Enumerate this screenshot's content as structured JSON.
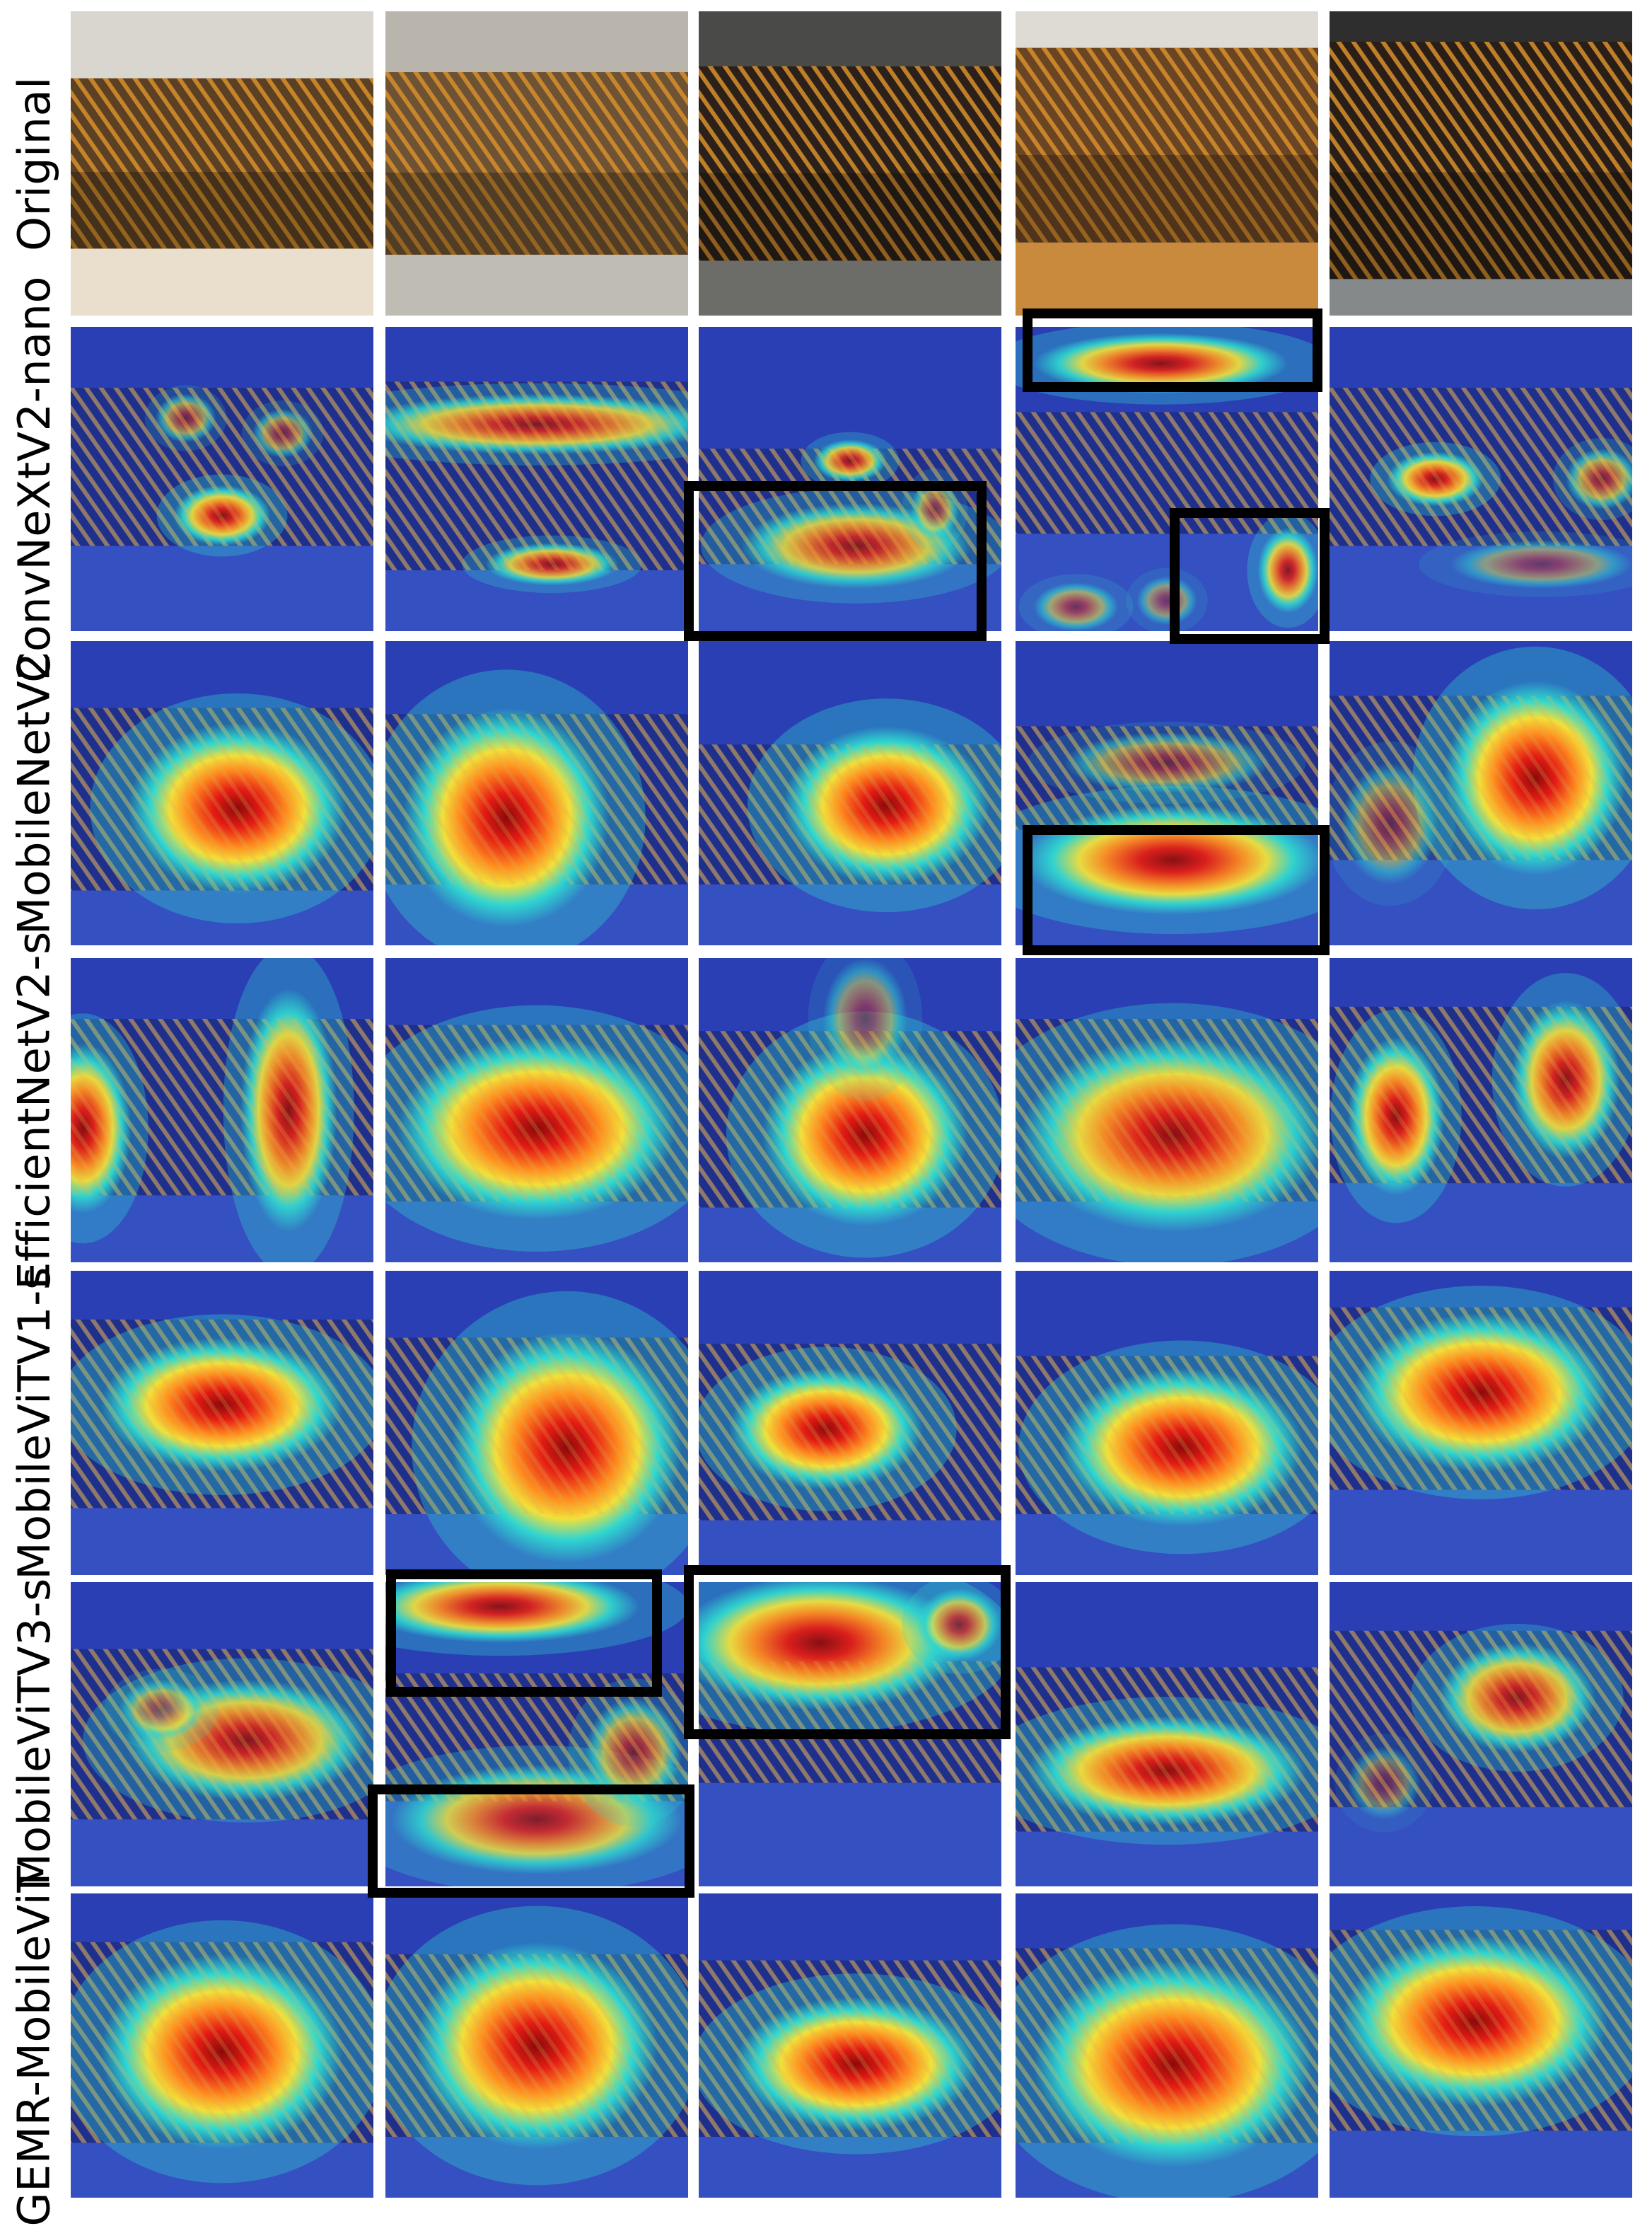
{
  "figure": {
    "rows": [
      {
        "label": "Original",
        "type": "original"
      },
      {
        "label": "ConvNeXtV2-nano",
        "type": "heatmap"
      },
      {
        "label": "MobileNetV2",
        "type": "heatmap"
      },
      {
        "label": "EfficientNetV2-s",
        "type": "heatmap"
      },
      {
        "label": "MobileViTV1-s",
        "type": "heatmap"
      },
      {
        "label": "MobileViTV3-s",
        "type": "heatmap"
      },
      {
        "label": "GEMR-MobileViT",
        "type": "heatmap"
      }
    ],
    "columns": 5,
    "colors": {
      "heat_low": "#2a3fb4",
      "heat_cyan": "#2fd6d0",
      "heat_yellow": "#f2e03a",
      "heat_orange": "#ff8a1e",
      "heat_red": "#e31b14",
      "heat_peak": "#8c0a0a",
      "box": "#000000"
    }
  }
}
